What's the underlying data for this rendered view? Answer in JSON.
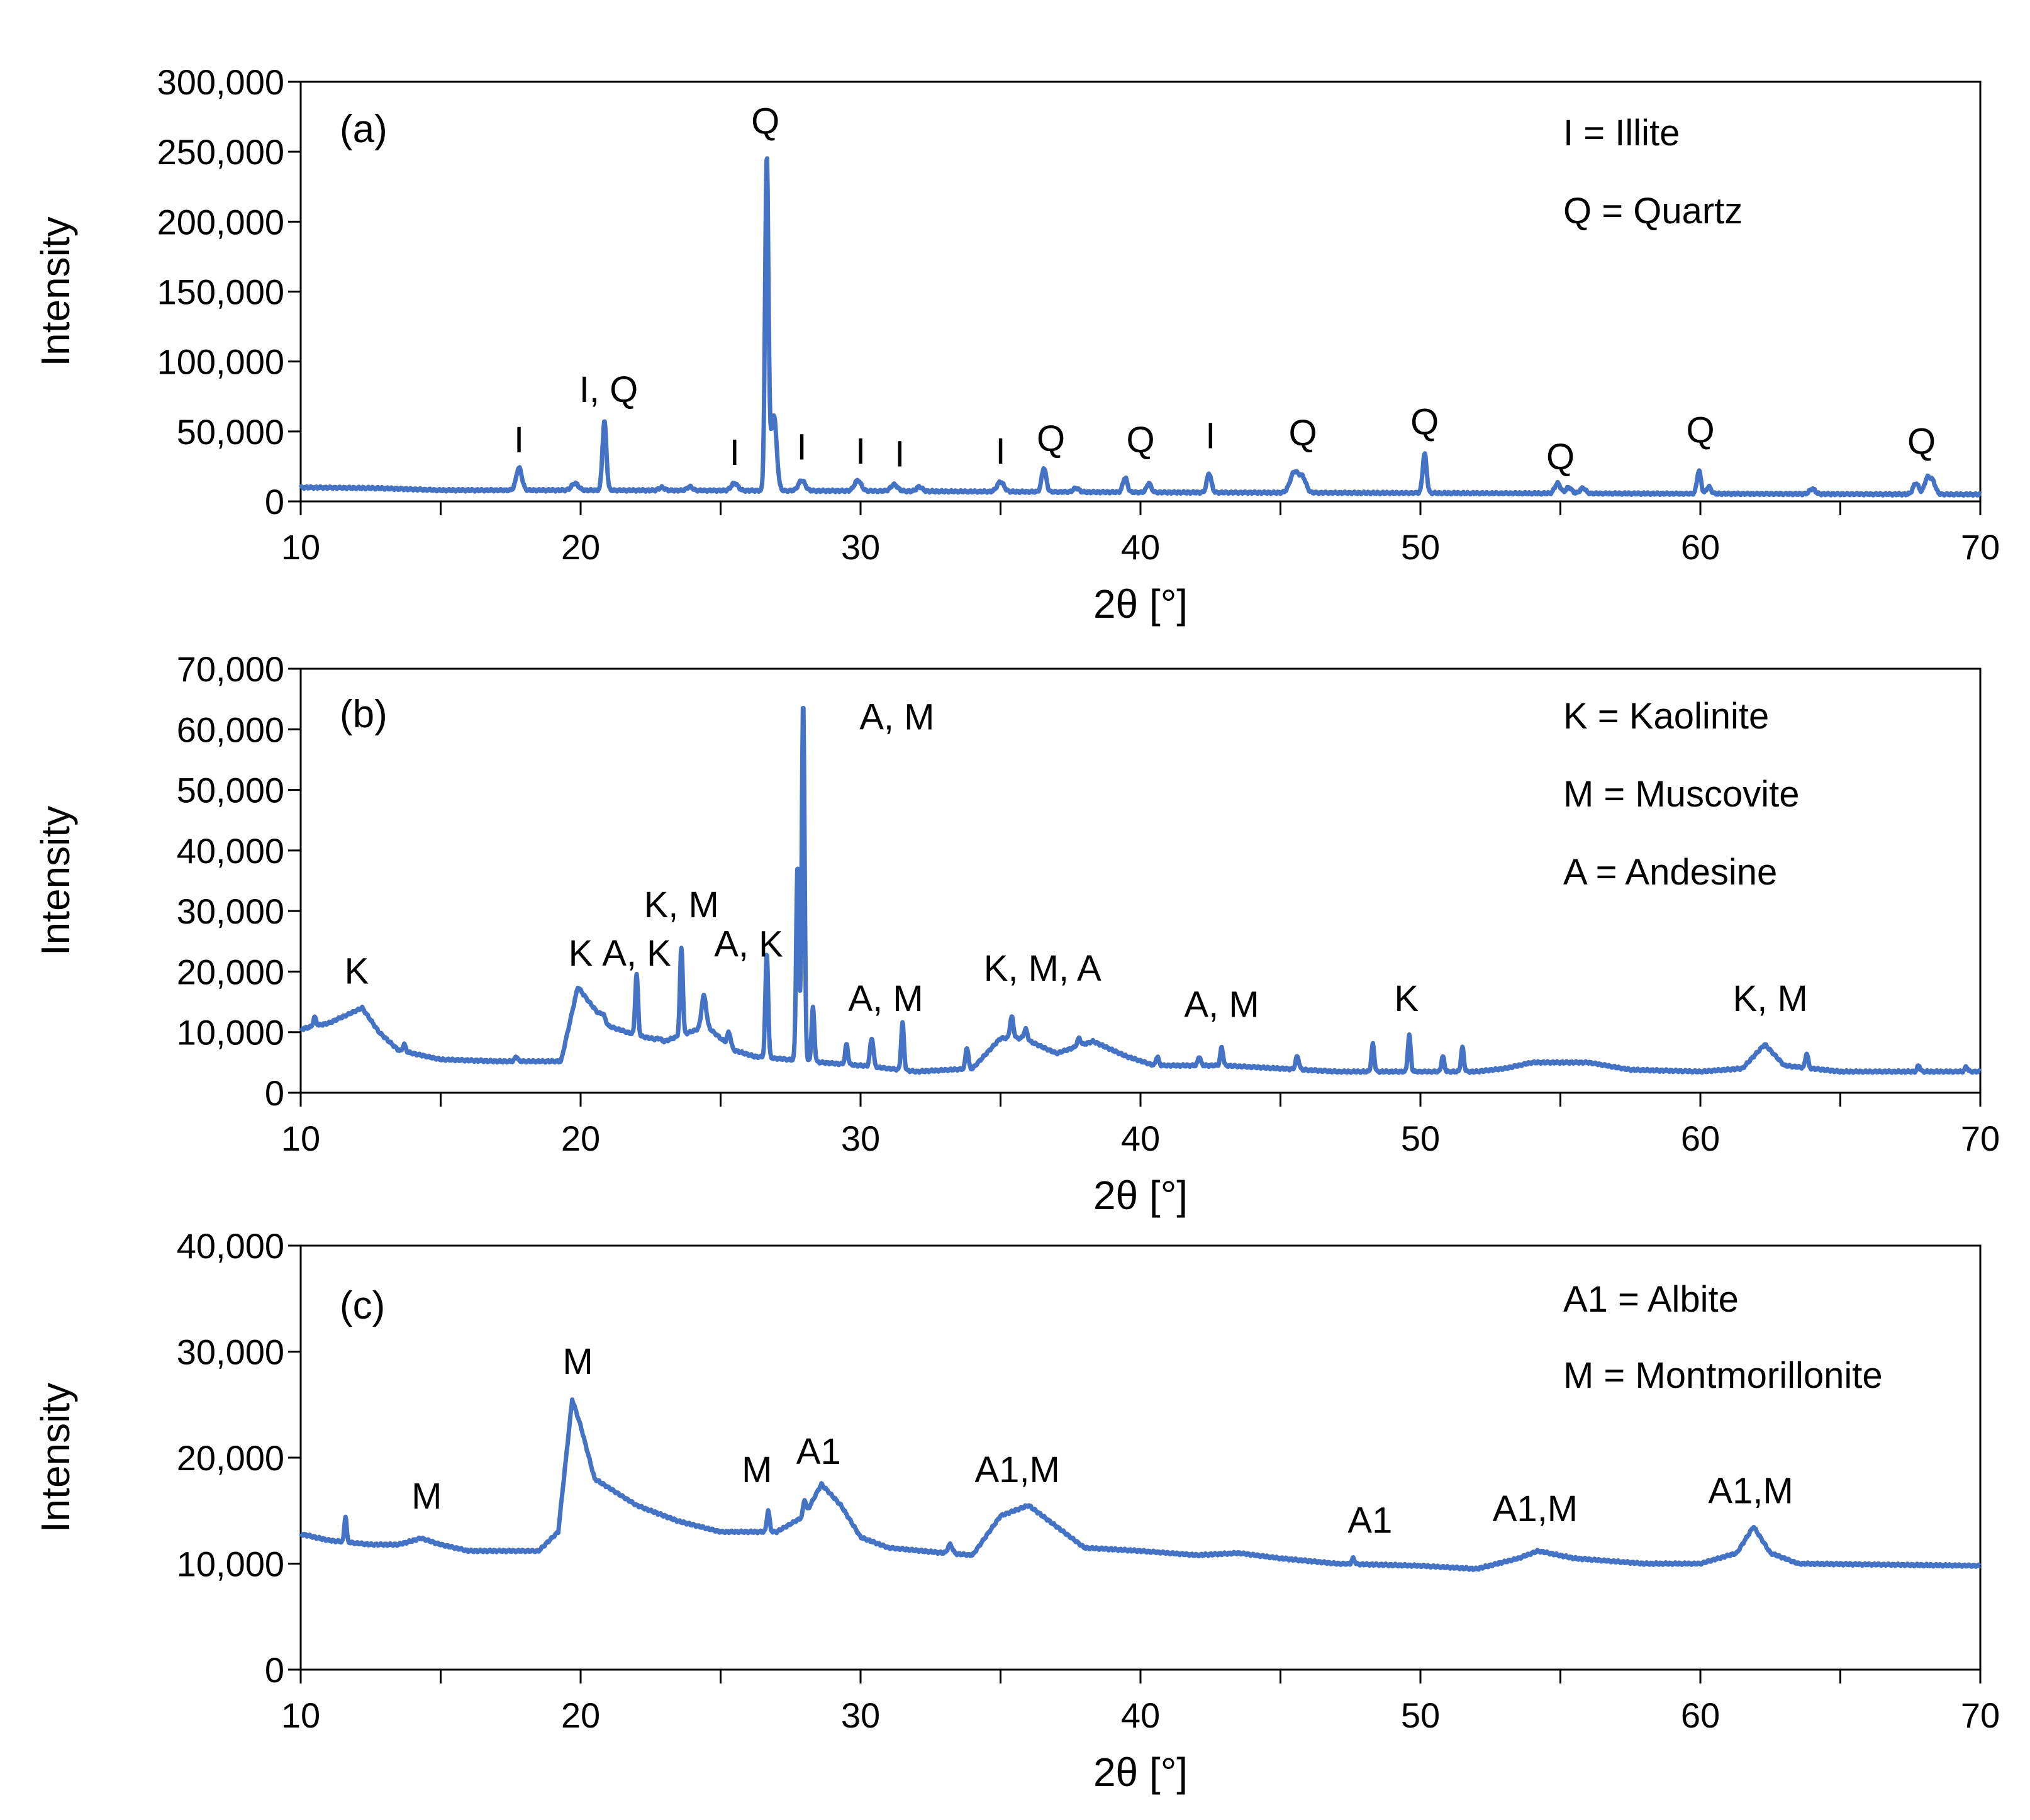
{
  "chart_data": [
    {
      "type": "line",
      "panel": "(a)",
      "xlabel": "2θ [°]",
      "ylabel": "Intensity",
      "xlim": [
        10,
        70
      ],
      "ylim": [
        0,
        300000
      ],
      "x_ticks": [
        "10",
        "20",
        "30",
        "40",
        "50",
        "60",
        "70"
      ],
      "y_ticks": [
        "0",
        "50,000",
        "100,000",
        "150,000",
        "200,000",
        "250,000",
        "300,000"
      ],
      "legend": [
        "I = Illite",
        "Q = Quartz"
      ],
      "color": "#4472C4",
      "baseline": [
        [
          10,
          10000
        ],
        [
          12.7,
          9500
        ],
        [
          15,
          8000
        ],
        [
          20,
          8000
        ],
        [
          30,
          7500
        ],
        [
          40,
          6500
        ],
        [
          50,
          6000
        ],
        [
          60,
          5500
        ],
        [
          70,
          5000
        ]
      ],
      "peaks": [
        {
          "x": 17.8,
          "y": 24000,
          "w": 0.1
        },
        {
          "x": 19.8,
          "y": 13000,
          "w": 0.12
        },
        {
          "x": 20.85,
          "y": 57000,
          "w": 0.07
        },
        {
          "x": 22.9,
          "y": 10000,
          "w": 0.1
        },
        {
          "x": 23.9,
          "y": 10500,
          "w": 0.1
        },
        {
          "x": 25.5,
          "y": 13000,
          "w": 0.12
        },
        {
          "x": 26.65,
          "y": 245000,
          "w": 0.06
        },
        {
          "x": 26.9,
          "y": 62000,
          "w": 0.1
        },
        {
          "x": 27.9,
          "y": 15000,
          "w": 0.12
        },
        {
          "x": 29.9,
          "y": 15000,
          "w": 0.12
        },
        {
          "x": 31.2,
          "y": 12000,
          "w": 0.12
        },
        {
          "x": 32.1,
          "y": 10500,
          "w": 0.1
        },
        {
          "x": 35.0,
          "y": 14000,
          "w": 0.12
        },
        {
          "x": 36.55,
          "y": 24000,
          "w": 0.08
        },
        {
          "x": 37.7,
          "y": 9500,
          "w": 0.1
        },
        {
          "x": 39.45,
          "y": 17000,
          "w": 0.08
        },
        {
          "x": 40.3,
          "y": 13000,
          "w": 0.08
        },
        {
          "x": 42.45,
          "y": 20000,
          "w": 0.08
        },
        {
          "x": 45.5,
          "y": 21000,
          "w": 0.15
        },
        {
          "x": 45.8,
          "y": 16000,
          "w": 0.12
        },
        {
          "x": 50.15,
          "y": 34000,
          "w": 0.07
        },
        {
          "x": 54.9,
          "y": 13000,
          "w": 0.1
        },
        {
          "x": 55.3,
          "y": 10000,
          "w": 0.1
        },
        {
          "x": 55.8,
          "y": 9500,
          "w": 0.1
        },
        {
          "x": 59.95,
          "y": 22000,
          "w": 0.07
        },
        {
          "x": 60.3,
          "y": 10500,
          "w": 0.08
        },
        {
          "x": 64.0,
          "y": 9000,
          "w": 0.1
        },
        {
          "x": 67.7,
          "y": 13000,
          "w": 0.1
        },
        {
          "x": 68.1,
          "y": 16000,
          "w": 0.1
        },
        {
          "x": 68.3,
          "y": 14000,
          "w": 0.1
        }
      ],
      "annotations": [
        {
          "text": "I",
          "x": 17.8,
          "y": 35000
        },
        {
          "text": "I, Q",
          "x": 21.0,
          "y": 71000
        },
        {
          "text": "Q",
          "x": 26.6,
          "y": 263000
        },
        {
          "text": "I",
          "x": 25.5,
          "y": 26000
        },
        {
          "text": "I",
          "x": 27.9,
          "y": 30000
        },
        {
          "text": "I",
          "x": 30.0,
          "y": 27000
        },
        {
          "text": "I",
          "x": 31.4,
          "y": 25000
        },
        {
          "text": "I",
          "x": 35.0,
          "y": 27000
        },
        {
          "text": "Q",
          "x": 36.8,
          "y": 36000
        },
        {
          "text": "Q",
          "x": 40.0,
          "y": 35000
        },
        {
          "text": "I",
          "x": 42.5,
          "y": 38000
        },
        {
          "text": "Q",
          "x": 45.8,
          "y": 40000
        },
        {
          "text": "Q",
          "x": 50.15,
          "y": 48000
        },
        {
          "text": "Q",
          "x": 55.0,
          "y": 23000
        },
        {
          "text": "Q",
          "x": 60.0,
          "y": 42000
        },
        {
          "text": "Q",
          "x": 67.9,
          "y": 34000
        }
      ]
    },
    {
      "type": "line",
      "panel": "(b)",
      "xlabel": "2θ [°]",
      "ylabel": "Intensity",
      "xlim": [
        10,
        70
      ],
      "ylim": [
        0,
        70000
      ],
      "x_ticks": [
        "10",
        "20",
        "30",
        "40",
        "50",
        "60",
        "70"
      ],
      "y_ticks": [
        "0",
        "10,000",
        "20,000",
        "30,000",
        "40,000",
        "50,000",
        "60,000",
        "70,000"
      ],
      "legend": [
        "K = Kaolinite",
        "M = Muscovite",
        "A = Andesine"
      ],
      "color": "#4472C4",
      "baseline": [
        [
          10,
          10500
        ],
        [
          11,
          11500
        ],
        [
          12.2,
          14000
        ],
        [
          12.8,
          10000
        ],
        [
          13.5,
          7000
        ],
        [
          15,
          5500
        ],
        [
          17,
          5200
        ],
        [
          19.3,
          5200
        ],
        [
          19.9,
          17500
        ],
        [
          20.3,
          15000
        ],
        [
          21,
          11000
        ],
        [
          22,
          9500
        ],
        [
          23,
          8500
        ],
        [
          24.5,
          11000
        ],
        [
          25.5,
          7000
        ],
        [
          26.2,
          6000
        ],
        [
          28.6,
          5000
        ],
        [
          30,
          4500
        ],
        [
          31,
          4000
        ],
        [
          32,
          3500
        ],
        [
          34,
          4000
        ],
        [
          35,
          9000
        ],
        [
          35.8,
          9000
        ],
        [
          37,
          6500
        ],
        [
          38.3,
          8500
        ],
        [
          39.5,
          6000
        ],
        [
          40.5,
          4500
        ],
        [
          43,
          4500
        ],
        [
          45,
          4000
        ],
        [
          47,
          3500
        ],
        [
          50,
          3500
        ],
        [
          52,
          3500
        ],
        [
          53,
          4000
        ],
        [
          54,
          5000
        ],
        [
          56,
          5000
        ],
        [
          57.5,
          3800
        ],
        [
          60,
          3500
        ],
        [
          61.5,
          4000
        ],
        [
          62.3,
          8000
        ],
        [
          63,
          4500
        ],
        [
          65,
          3500
        ],
        [
          70,
          3500
        ]
      ],
      "peaks": [
        {
          "x": 10.5,
          "y": 12500,
          "w": 0.05
        },
        {
          "x": 13.7,
          "y": 8000,
          "w": 0.05
        },
        {
          "x": 17.7,
          "y": 6000,
          "w": 0.05
        },
        {
          "x": 20.8,
          "y": 13000,
          "w": 0.08
        },
        {
          "x": 22.0,
          "y": 19500,
          "w": 0.05
        },
        {
          "x": 22.8,
          "y": 9000,
          "w": 0.06
        },
        {
          "x": 23.6,
          "y": 24000,
          "w": 0.05
        },
        {
          "x": 24.4,
          "y": 16000,
          "w": 0.08
        },
        {
          "x": 25.3,
          "y": 10000,
          "w": 0.06
        },
        {
          "x": 26.65,
          "y": 23000,
          "w": 0.05
        },
        {
          "x": 27.75,
          "y": 37500,
          "w": 0.05
        },
        {
          "x": 27.95,
          "y": 64500,
          "w": 0.05
        },
        {
          "x": 28.3,
          "y": 14000,
          "w": 0.05
        },
        {
          "x": 29.5,
          "y": 8000,
          "w": 0.05
        },
        {
          "x": 30.4,
          "y": 9000,
          "w": 0.06
        },
        {
          "x": 31.5,
          "y": 11500,
          "w": 0.05
        },
        {
          "x": 33.8,
          "y": 7500,
          "w": 0.05
        },
        {
          "x": 35.4,
          "y": 12500,
          "w": 0.06
        },
        {
          "x": 35.9,
          "y": 10500,
          "w": 0.06
        },
        {
          "x": 37.8,
          "y": 9000,
          "w": 0.06
        },
        {
          "x": 40.6,
          "y": 6000,
          "w": 0.05
        },
        {
          "x": 42.1,
          "y": 6000,
          "w": 0.05
        },
        {
          "x": 42.9,
          "y": 7500,
          "w": 0.05
        },
        {
          "x": 45.6,
          "y": 6000,
          "w": 0.06
        },
        {
          "x": 48.3,
          "y": 8000,
          "w": 0.05
        },
        {
          "x": 49.6,
          "y": 9500,
          "w": 0.05
        },
        {
          "x": 50.8,
          "y": 6000,
          "w": 0.05
        },
        {
          "x": 51.5,
          "y": 7500,
          "w": 0.05
        },
        {
          "x": 63.8,
          "y": 6500,
          "w": 0.05
        },
        {
          "x": 67.8,
          "y": 4500,
          "w": 0.05
        },
        {
          "x": 69.5,
          "y": 4300,
          "w": 0.05
        }
      ],
      "annotations": [
        {
          "text": "K",
          "x": 12.0,
          "y": 18000
        },
        {
          "text": "K",
          "x": 20.0,
          "y": 21000
        },
        {
          "text": "A, K",
          "x": 22.0,
          "y": 21000
        },
        {
          "text": "K, M",
          "x": 23.6,
          "y": 29000
        },
        {
          "text": "A, K",
          "x": 26.0,
          "y": 22500
        },
        {
          "text": "A, M",
          "x": 31.3,
          "y": 60000
        },
        {
          "text": "A, M",
          "x": 30.9,
          "y": 13500
        },
        {
          "text": "K, M, A",
          "x": 36.5,
          "y": 18500
        },
        {
          "text": "A, M",
          "x": 42.9,
          "y": 12500
        },
        {
          "text": "K",
          "x": 49.5,
          "y": 13500
        },
        {
          "text": "K, M",
          "x": 62.5,
          "y": 13500
        }
      ]
    },
    {
      "type": "line",
      "panel": "(c)",
      "xlabel": "2θ [°]",
      "ylabel": "Intensity",
      "xlim": [
        10,
        70
      ],
      "ylim": [
        0,
        40000
      ],
      "x_ticks": [
        "10",
        "20",
        "30",
        "40",
        "50",
        "60",
        "70"
      ],
      "y_ticks": [
        "0",
        "10,000",
        "20,000",
        "30,000",
        "40,000"
      ],
      "legend": [
        "A1 = Albite",
        "M = Montmorillonite"
      ],
      "color": "#4472C4",
      "baseline": [
        [
          10,
          12800
        ],
        [
          11,
          12200
        ],
        [
          12.5,
          11800
        ],
        [
          13.5,
          11800
        ],
        [
          14.3,
          12400
        ],
        [
          15,
          11800
        ],
        [
          16,
          11200
        ],
        [
          18.5,
          11200
        ],
        [
          19.2,
          13000
        ],
        [
          19.7,
          25500
        ],
        [
          20.0,
          23000
        ],
        [
          20.5,
          18000
        ],
        [
          22,
          15500
        ],
        [
          23.5,
          14000
        ],
        [
          25,
          13000
        ],
        [
          27,
          13000
        ],
        [
          28.0,
          14500
        ],
        [
          28.6,
          17500
        ],
        [
          29.3,
          15500
        ],
        [
          30,
          12500
        ],
        [
          31,
          11500
        ],
        [
          33,
          11000
        ],
        [
          34,
          10800
        ],
        [
          35,
          14500
        ],
        [
          36,
          15500
        ],
        [
          37,
          13500
        ],
        [
          38,
          11500
        ],
        [
          40,
          11200
        ],
        [
          42,
          10800
        ],
        [
          43.5,
          11000
        ],
        [
          45,
          10500
        ],
        [
          47,
          10000
        ],
        [
          50,
          9800
        ],
        [
          52,
          9500
        ],
        [
          53.5,
          10500
        ],
        [
          54.2,
          11200
        ],
        [
          55.5,
          10500
        ],
        [
          58,
          10000
        ],
        [
          60,
          10000
        ],
        [
          61.3,
          11000
        ],
        [
          61.9,
          13500
        ],
        [
          62.5,
          11000
        ],
        [
          63.5,
          10000
        ],
        [
          70,
          9800
        ]
      ],
      "peaks": [
        {
          "x": 11.6,
          "y": 14500,
          "w": 0.04
        },
        {
          "x": 26.7,
          "y": 15000,
          "w": 0.05
        },
        {
          "x": 28.0,
          "y": 16000,
          "w": 0.05
        },
        {
          "x": 33.2,
          "y": 11800,
          "w": 0.08
        },
        {
          "x": 47.6,
          "y": 10500,
          "w": 0.05
        }
      ],
      "annotations": [
        {
          "text": "M",
          "x": 14.5,
          "y": 15200
        },
        {
          "text": "M",
          "x": 19.9,
          "y": 27900
        },
        {
          "text": "M",
          "x": 26.3,
          "y": 17700
        },
        {
          "text": "A1",
          "x": 28.5,
          "y": 19400
        },
        {
          "text": "A1,M",
          "x": 35.6,
          "y": 17700
        },
        {
          "text": "A1",
          "x": 48.2,
          "y": 12900
        },
        {
          "text": "A1,M",
          "x": 54.1,
          "y": 14000
        },
        {
          "text": "A1,M",
          "x": 61.8,
          "y": 15700
        }
      ]
    }
  ]
}
